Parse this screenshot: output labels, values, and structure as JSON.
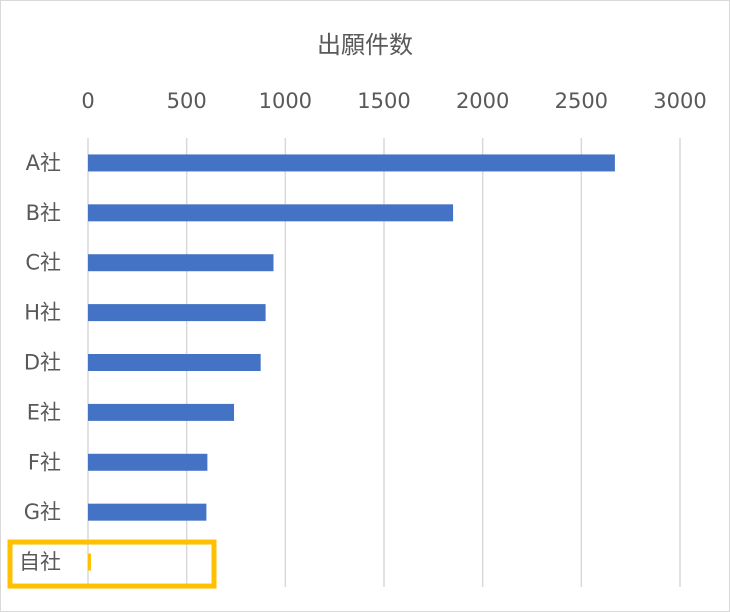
{
  "chart_data": {
    "type": "bar",
    "orientation": "horizontal",
    "title": "出願件数",
    "categories": [
      "A社",
      "B社",
      "C社",
      "H社",
      "D社",
      "E社",
      "F社",
      "G社",
      "自社"
    ],
    "values": [
      2670,
      1850,
      940,
      900,
      875,
      740,
      605,
      600,
      15
    ],
    "xlim": [
      0,
      3000
    ],
    "x_ticks": [
      "0",
      "500",
      "1000",
      "1500",
      "2000",
      "2500",
      "3000"
    ],
    "x_tick_values": [
      0,
      500,
      1000,
      1500,
      2000,
      2500,
      3000
    ],
    "axis_position": "top",
    "grid": true,
    "legend": "none",
    "highlight_category": "自社",
    "colors": {
      "bar": "#4472c4",
      "highlight_bar": "#ffc000",
      "highlight_box": "#ffc000",
      "grid": "#d9d9d9",
      "text": "#595959"
    }
  }
}
